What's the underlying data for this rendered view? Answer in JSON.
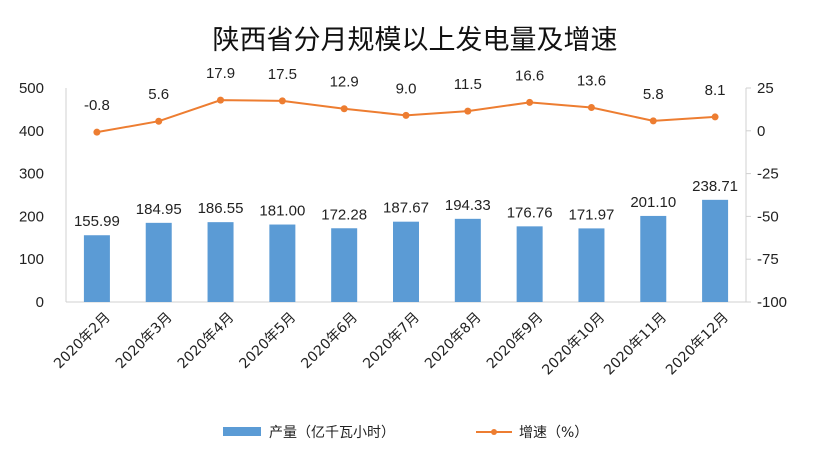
{
  "chart_data": {
    "type": "bar+line",
    "title": "陕西省分月规模以上发电量及增速",
    "categories": [
      "2020年2月",
      "2020年3月",
      "2020年4月",
      "2020年5月",
      "2020年6月",
      "2020年7月",
      "2020年8月",
      "2020年9月",
      "2020年10月",
      "2020年11月",
      "2020年12月"
    ],
    "series": [
      {
        "name": "产量（亿千瓦小时）",
        "type": "bar",
        "axis": "left",
        "color": "#5b9bd5",
        "values": [
          155.99,
          184.95,
          186.55,
          181.0,
          172.28,
          187.67,
          194.33,
          176.76,
          171.97,
          201.1,
          238.71
        ],
        "labels": [
          "155.99",
          "184.95",
          "186.55",
          "181.00",
          "172.28",
          "187.67",
          "194.33",
          "176.76",
          "171.97",
          "201.10",
          "238.71"
        ]
      },
      {
        "name": "增速（%）",
        "type": "line",
        "axis": "right",
        "color": "#ed7d31",
        "values": [
          -0.8,
          5.6,
          17.9,
          17.5,
          12.9,
          9.0,
          11.5,
          16.6,
          13.6,
          5.8,
          8.1
        ],
        "labels": [
          "-0.8",
          "5.6",
          "17.9",
          "17.5",
          "12.9",
          "9.0",
          "11.5",
          "16.6",
          "13.6",
          "5.8",
          "8.1"
        ]
      }
    ],
    "left_axis": {
      "min": 0,
      "max": 500,
      "ticks": [
        "0",
        "100",
        "200",
        "300",
        "400",
        "500"
      ]
    },
    "right_axis": {
      "min": -100,
      "max": 25,
      "ticks": [
        "-100",
        "-75",
        "-50",
        "-25",
        "0",
        "25"
      ]
    },
    "legend": {
      "position": "bottom",
      "items": [
        {
          "label": "产量（亿千瓦小时）",
          "kind": "bar"
        },
        {
          "label": "增速（%）",
          "kind": "line"
        }
      ]
    }
  }
}
